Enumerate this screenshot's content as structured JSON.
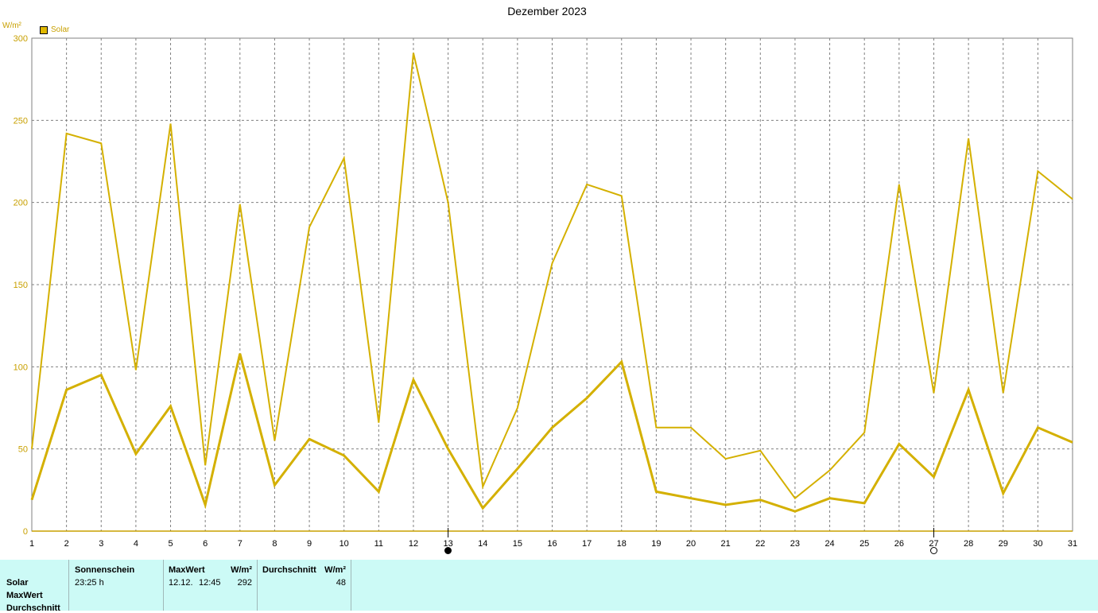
{
  "chart_data": {
    "type": "line",
    "title": "Dezember 2023",
    "ylabel": "W/m²",
    "ylim": [
      0,
      300
    ],
    "yticks": [
      0,
      50,
      100,
      150,
      200,
      250,
      300
    ],
    "x": [
      1,
      2,
      3,
      4,
      5,
      6,
      7,
      8,
      9,
      10,
      11,
      12,
      13,
      14,
      15,
      16,
      17,
      18,
      19,
      20,
      21,
      22,
      23,
      24,
      25,
      26,
      27,
      28,
      29,
      30,
      31
    ],
    "grid": true,
    "legend_position": "top-left",
    "series": [
      {
        "name": "Solar",
        "role": "max",
        "values": [
          50,
          242,
          236,
          98,
          248,
          40,
          199,
          55,
          185,
          227,
          66,
          291,
          200,
          27,
          75,
          163,
          211,
          204,
          63,
          63,
          44,
          49,
          20,
          37,
          60,
          211,
          84,
          239,
          84,
          219,
          202
        ]
      },
      {
        "name": "",
        "role": "avg",
        "values": [
          19,
          86,
          95,
          47,
          76,
          16,
          108,
          28,
          56,
          46,
          24,
          92,
          50,
          14,
          38,
          63,
          81,
          103,
          24,
          20,
          16,
          19,
          12,
          20,
          17,
          53,
          33,
          86,
          23,
          63,
          54
        ]
      }
    ],
    "moon_phases": [
      {
        "day": 13,
        "phase": "new-moon",
        "icon": "new-moon-icon"
      },
      {
        "day": 27,
        "phase": "full-moon",
        "icon": "full-moon-icon"
      }
    ],
    "colors": {
      "line": "#d4b000",
      "axis": "#c8a000",
      "grid": "#808080"
    }
  },
  "stats": {
    "row_labels": [
      "Solar",
      "MaxWert",
      "Durchschnitt"
    ],
    "sonnenschein": {
      "header": "Sonnenschein",
      "value": "23:25 h"
    },
    "maxwert": {
      "header": "MaxWert",
      "unit": "W/m²",
      "date": "12.12.",
      "time": "12:45",
      "value": "292"
    },
    "durchschnitt": {
      "header": "Durchschnitt",
      "unit": "W/m²",
      "value": "48"
    }
  }
}
